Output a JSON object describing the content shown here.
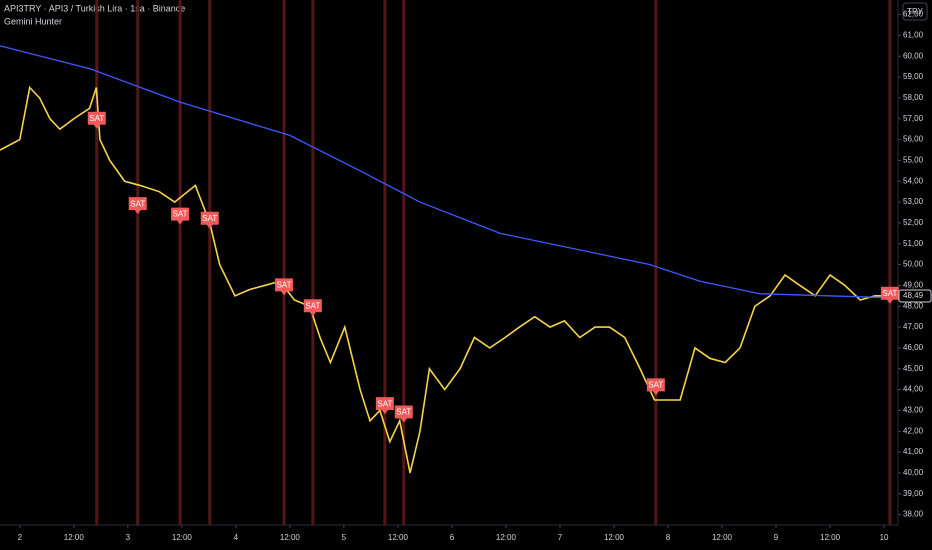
{
  "chart_data": {
    "type": "line",
    "title": "API3TRY · API3 / Turkish Lira · 1sa · Binance",
    "subtitle": "Gemini Hunter",
    "currency_button": "TRY",
    "xlim": [
      -4.4,
      195.1
    ],
    "ylim": [
      37.5,
      62.7
    ],
    "xticks": [
      {
        "value": 0,
        "label": "2"
      },
      {
        "value": 12,
        "label": "12:00"
      },
      {
        "value": 24,
        "label": "3"
      },
      {
        "value": 36,
        "label": "12:00"
      },
      {
        "value": 48,
        "label": "4"
      },
      {
        "value": 60,
        "label": "12:00"
      },
      {
        "value": 72,
        "label": "5"
      },
      {
        "value": 84,
        "label": "12:00"
      },
      {
        "value": 96,
        "label": "6"
      },
      {
        "value": 108,
        "label": "12:00"
      },
      {
        "value": 120,
        "label": "7"
      },
      {
        "value": 132,
        "label": "12:00"
      },
      {
        "value": 144,
        "label": "8"
      },
      {
        "value": 156,
        "label": "12:00"
      },
      {
        "value": 168,
        "label": "9"
      },
      {
        "value": 180,
        "label": "12:00"
      },
      {
        "value": 192,
        "label": "10"
      }
    ],
    "yticks": [
      {
        "value": 38,
        "label": "38,00"
      },
      {
        "value": 39,
        "label": "39,00"
      },
      {
        "value": 40,
        "label": "40,00"
      },
      {
        "value": 41,
        "label": "41,00"
      },
      {
        "value": 42,
        "label": "42,00"
      },
      {
        "value": 43,
        "label": "43,00"
      },
      {
        "value": 44,
        "label": "44,00"
      },
      {
        "value": 45,
        "label": "45,00"
      },
      {
        "value": 46,
        "label": "46,00"
      },
      {
        "value": 47,
        "label": "47,00"
      },
      {
        "value": 48,
        "label": "48,00"
      },
      {
        "value": 49,
        "label": "49,00"
      },
      {
        "value": 50,
        "label": "50,00"
      },
      {
        "value": 51,
        "label": "51,00"
      },
      {
        "value": 52,
        "label": "52,00"
      },
      {
        "value": 53,
        "label": "53,00"
      },
      {
        "value": 54,
        "label": "54,00"
      },
      {
        "value": 55,
        "label": "55,00"
      },
      {
        "value": 56,
        "label": "56,00"
      },
      {
        "value": 57,
        "label": "57,00"
      },
      {
        "value": 58,
        "label": "58,00"
      },
      {
        "value": 59,
        "label": "59,00"
      },
      {
        "value": 60,
        "label": "60,00"
      },
      {
        "value": 61,
        "label": "61,00"
      },
      {
        "value": 62,
        "label": "62,00"
      }
    ],
    "series": [
      {
        "color": "#f5d547",
        "x": [
          -4.4,
          0,
          2.2,
          4.4,
          6.7,
          8.9,
          12,
          15.5,
          17,
          17.8,
          20,
          23.3,
          26.7,
          31,
          34.4,
          39,
          42.2,
          44.4,
          47.8,
          51,
          54.4,
          57.8,
          61,
          64.4,
          66.7,
          69,
          72.2,
          75.6,
          77.8,
          80,
          82.2,
          84.4,
          86.7,
          88.9,
          91,
          94.4,
          97.8,
          101,
          104.4,
          107.8,
          111,
          114.4,
          117.8,
          121,
          124.4,
          127.8,
          131,
          134.4,
          137.8,
          141,
          144.4,
          146.7,
          150,
          153.3,
          156.7,
          160,
          163.3,
          166.7,
          170,
          173.3,
          176.7,
          180,
          183.3,
          186.7,
          190,
          194.4
        ],
        "values": [
          55.5,
          56,
          58.5,
          58,
          57,
          56.5,
          57,
          57.5,
          58.5,
          56,
          55,
          54,
          53.8,
          53.5,
          53,
          53.8,
          52,
          50,
          48.5,
          48.8,
          49,
          49.2,
          48.3,
          48,
          46.5,
          45.3,
          47,
          44,
          42.5,
          43,
          41.5,
          42.5,
          40,
          42,
          45,
          44,
          45,
          46.5,
          46,
          46.5,
          47,
          47.5,
          47,
          47.3,
          46.5,
          47,
          47,
          46.5,
          45,
          43.5,
          43.5,
          43.5,
          46,
          45.5,
          45.3,
          46,
          48,
          48.5,
          49.5,
          49,
          48.5,
          49.5,
          49,
          48.3,
          48.5,
          48.5
        ]
      },
      {
        "color": "#3d5afe",
        "x": [
          -4.4,
          15.6,
          35.6,
          60,
          75.6,
          88.9,
          106.7,
          128.9,
          140,
          151.1,
          164.4,
          195.1
        ],
        "values": [
          60.5,
          59.4,
          57.8,
          56.2,
          54.5,
          53,
          51.5,
          50.5,
          50,
          49.2,
          48.6,
          48.4
        ]
      }
    ],
    "signals": [
      {
        "x": 17.1,
        "y": 57,
        "label": "SAT"
      },
      {
        "x": 26.2,
        "y": 52.9,
        "label": "SAT"
      },
      {
        "x": 35.6,
        "y": 52.4,
        "label": "SAT"
      },
      {
        "x": 42.2,
        "y": 52.2,
        "label": "SAT"
      },
      {
        "x": 58.7,
        "y": 49,
        "label": "SAT"
      },
      {
        "x": 65.1,
        "y": 48,
        "label": "SAT"
      },
      {
        "x": 81.1,
        "y": 43.3,
        "label": "SAT"
      },
      {
        "x": 85.3,
        "y": 42.9,
        "label": "SAT"
      },
      {
        "x": 141.3,
        "y": 44.2,
        "label": "SAT"
      },
      {
        "x": 193.3,
        "y": 48.6,
        "label": "SAT"
      }
    ],
    "last_price": {
      "value": 48.49,
      "label": "48,49"
    }
  }
}
